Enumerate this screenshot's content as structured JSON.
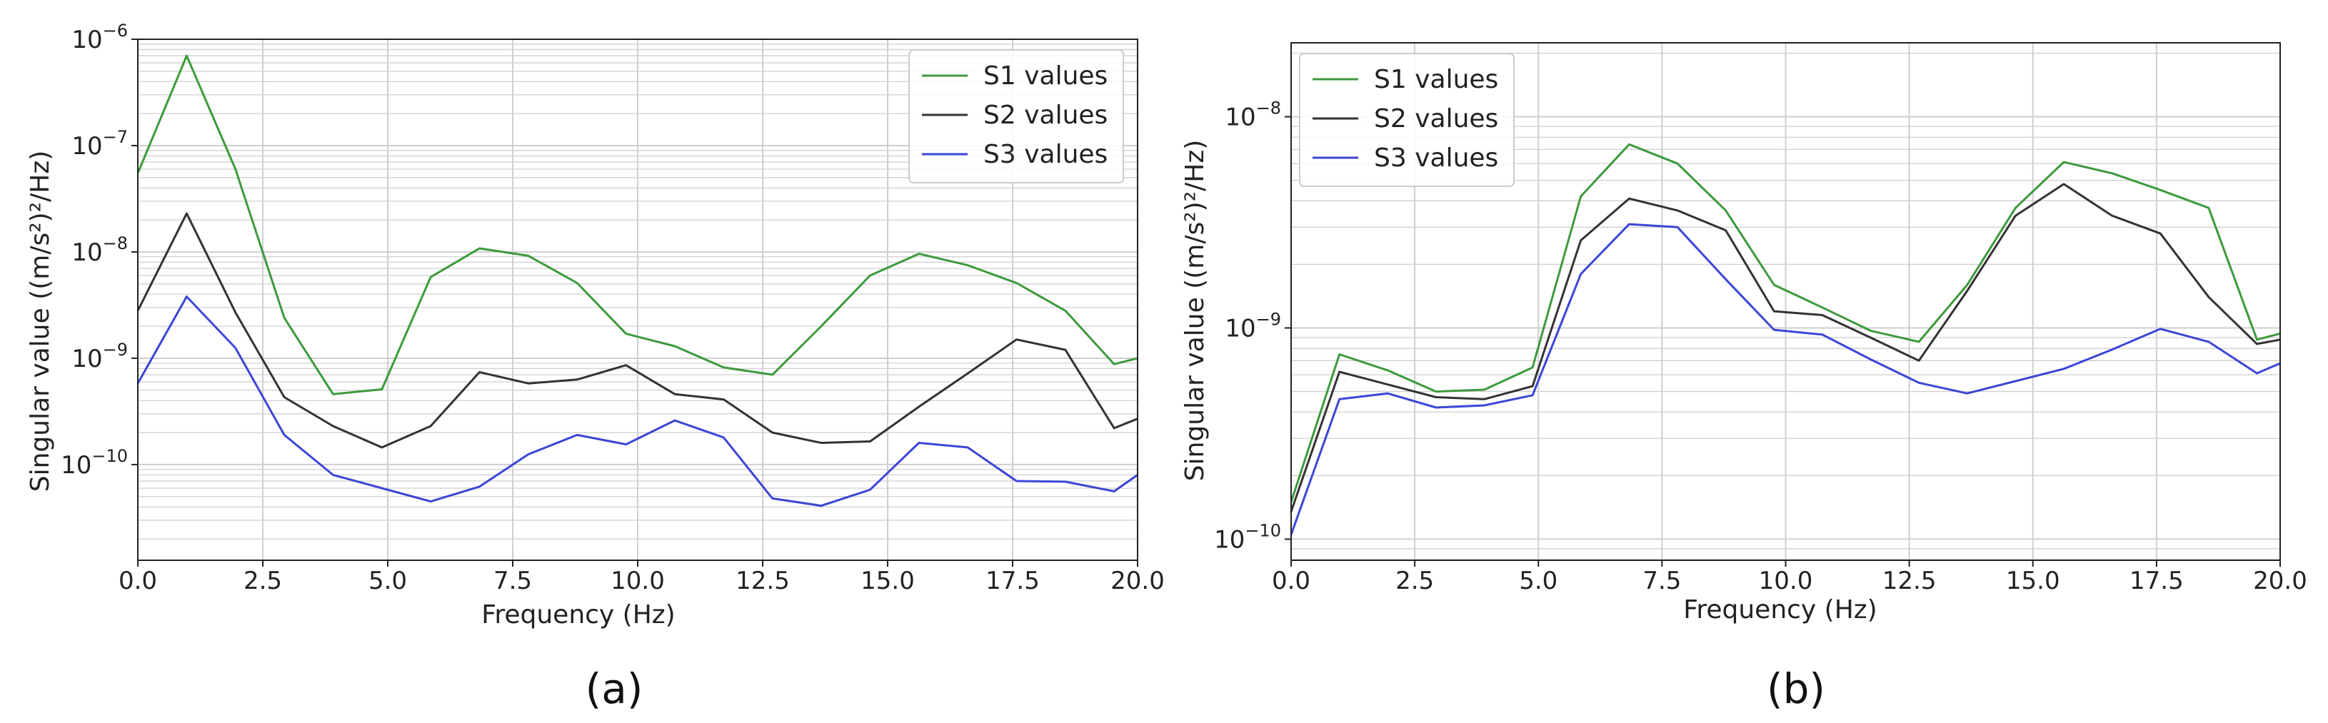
{
  "colors": {
    "S1": "#3c9a3c",
    "S2": "#333333",
    "S3": "#3c46d6",
    "grid": "#cfcfcf",
    "axis": "#222222"
  },
  "chart_data": [
    {
      "id": "a",
      "type": "line",
      "panel_label": "(a)",
      "panel_letter": "a",
      "xlabel": "Frequency (Hz)",
      "ylabel": "Singular value ((m/s²)²/Hz)",
      "xlim": [
        0,
        20
      ],
      "ylim_log10": [
        -10.9,
        -6.0
      ],
      "xticks": [
        "0.0",
        "2.5",
        "5.0",
        "7.5",
        "10.0",
        "12.5",
        "15.0",
        "17.5",
        "20.0"
      ],
      "yticks": [
        {
          "base": "10",
          "exp": "−10"
        },
        {
          "base": "10",
          "exp": "−9"
        },
        {
          "base": "10",
          "exp": "−8"
        },
        {
          "base": "10",
          "exp": "−7"
        },
        {
          "base": "10",
          "exp": "−6"
        }
      ],
      "ytick_exponents": [
        -10,
        -9,
        -8,
        -7,
        -6
      ],
      "legend_position": "top-right",
      "x": [
        0,
        0.977,
        1.953,
        2.93,
        3.906,
        4.883,
        5.859,
        6.836,
        7.813,
        8.789,
        9.766,
        10.742,
        11.719,
        12.695,
        13.672,
        14.648,
        15.625,
        16.602,
        17.578,
        18.555,
        19.531,
        20.0
      ],
      "series": [
        {
          "name": "S1 values",
          "key": "S1",
          "values": [
            5.5e-08,
            7e-07,
            6e-08,
            2.4e-09,
            4.6e-10,
            5.1e-10,
            5.8e-09,
            1.08e-08,
            9.2e-09,
            5.1e-09,
            1.7e-09,
            1.3e-09,
            8.2e-10,
            7e-10,
            2e-09,
            6e-09,
            9.6e-09,
            7.5e-09,
            5.1e-09,
            2.8e-09,
            8.8e-10,
            1e-09
          ]
        },
        {
          "name": "S2 values",
          "key": "S2",
          "values": [
            2.8e-09,
            2.3e-08,
            2.7e-09,
            4.3e-10,
            2.3e-10,
            1.45e-10,
            2.3e-10,
            7.4e-10,
            5.8e-10,
            6.3e-10,
            8.6e-10,
            4.6e-10,
            4.1e-10,
            2e-10,
            1.6e-10,
            1.65e-10,
            3.5e-10,
            7.2e-10,
            1.5e-09,
            1.2e-09,
            2.2e-10,
            2.7e-10
          ]
        },
        {
          "name": "S3 values",
          "key": "S3",
          "values": [
            5.8e-10,
            3.8e-09,
            1.25e-09,
            1.9e-10,
            8e-11,
            6e-11,
            4.5e-11,
            6.2e-11,
            1.25e-10,
            1.9e-10,
            1.55e-10,
            2.6e-10,
            1.8e-10,
            4.8e-11,
            4.1e-11,
            5.8e-11,
            1.6e-10,
            1.45e-10,
            7e-11,
            6.9e-11,
            5.6e-11,
            8e-11
          ]
        }
      ]
    },
    {
      "id": "b",
      "type": "line",
      "panel_label": "(b)",
      "panel_letter": "b",
      "xlabel": "Frequency (Hz)",
      "ylabel": "Singular value ((m/s²)²/Hz)",
      "xlim": [
        0,
        20
      ],
      "ylim_log10": [
        -10.1,
        -7.65
      ],
      "xticks": [
        "0.0",
        "2.5",
        "5.0",
        "7.5",
        "10.0",
        "12.5",
        "15.0",
        "17.5",
        "20.0"
      ],
      "yticks": [
        {
          "base": "10",
          "exp": "−10"
        },
        {
          "base": "10",
          "exp": "−9"
        },
        {
          "base": "10",
          "exp": "−8"
        }
      ],
      "ytick_exponents": [
        -10,
        -9,
        -8
      ],
      "legend_position": "top-left",
      "x": [
        0,
        0.977,
        1.953,
        2.93,
        3.906,
        4.883,
        5.859,
        6.836,
        7.813,
        8.789,
        9.766,
        10.742,
        11.719,
        12.695,
        13.672,
        14.648,
        15.625,
        16.602,
        17.578,
        18.555,
        19.531,
        20.0
      ],
      "series": [
        {
          "name": "S1 values",
          "key": "S1",
          "values": [
            1.5e-10,
            7.5e-10,
            6.3e-10,
            5e-10,
            5.1e-10,
            6.5e-10,
            4.2e-09,
            7.4e-09,
            6e-09,
            3.6e-09,
            1.6e-09,
            1.25e-09,
            9.7e-10,
            8.6e-10,
            1.6e-09,
            3.7e-09,
            6.1e-09,
            5.4e-09,
            4.5e-09,
            3.7e-09,
            8.8e-10,
            9.4e-10
          ]
        },
        {
          "name": "S2 values",
          "key": "S2",
          "values": [
            1.35e-10,
            6.2e-10,
            5.4e-10,
            4.7e-10,
            4.6e-10,
            5.3e-10,
            2.6e-09,
            4.1e-09,
            3.6e-09,
            2.9e-09,
            1.2e-09,
            1.15e-09,
            9e-10,
            7e-10,
            1.5e-09,
            3.4e-09,
            4.8e-09,
            3.4e-09,
            2.8e-09,
            1.4e-09,
            8.4e-10,
            8.8e-10
          ]
        },
        {
          "name": "S3 values",
          "key": "S3",
          "values": [
            1.05e-10,
            4.6e-10,
            4.9e-10,
            4.2e-10,
            4.3e-10,
            4.8e-10,
            1.8e-09,
            3.1e-09,
            3e-09,
            1.7e-09,
            9.8e-10,
            9.3e-10,
            7.1e-10,
            5.5e-10,
            4.9e-10,
            5.6e-10,
            6.4e-10,
            7.9e-10,
            9.9e-10,
            8.6e-10,
            6.1e-10,
            6.8e-10
          ]
        }
      ]
    }
  ]
}
